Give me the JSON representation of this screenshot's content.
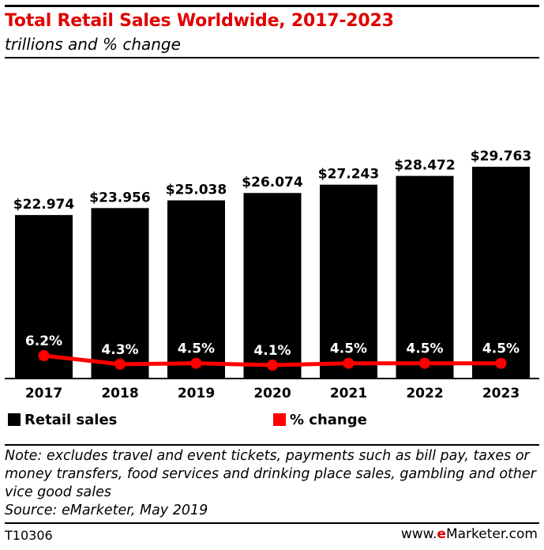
{
  "header": {
    "title": "Total Retail Sales Worldwide, 2017-2023",
    "subtitle": "trillions and % change"
  },
  "colors": {
    "accent": "#e00000",
    "bars": "#000000",
    "line": "#ff0000"
  },
  "chart_data": {
    "type": "bar",
    "categories": [
      "2017",
      "2018",
      "2019",
      "2020",
      "2021",
      "2022",
      "2023"
    ],
    "series": [
      {
        "name": "Retail sales",
        "type": "bar",
        "values": [
          22.974,
          23.956,
          25.038,
          26.074,
          27.243,
          28.472,
          29.763
        ],
        "labels": [
          "$22.974",
          "$23.956",
          "$25.038",
          "$26.074",
          "$27.243",
          "$28.472",
          "$29.763"
        ]
      },
      {
        "name": "% change",
        "type": "line",
        "values": [
          6.2,
          4.3,
          4.5,
          4.1,
          4.5,
          4.5,
          4.5
        ],
        "labels": [
          "6.2%",
          "4.3%",
          "4.5%",
          "4.1%",
          "4.5%",
          "4.5%",
          "4.5%"
        ]
      }
    ],
    "grid": false,
    "legend": "bottom"
  },
  "legend": {
    "bars_label": "Retail sales",
    "line_label": "% change"
  },
  "note": {
    "lines": [
      "Note: excludes travel and event tickets, payments such as bill pay, taxes or",
      "money transfers, food services and drinking place sales, gambling and other",
      "vice good sales"
    ],
    "source": "Source: eMarketer, May 2019"
  },
  "footer": {
    "id": "T10306",
    "brand_prefix": "www.",
    "brand_highlight": "e",
    "brand_suffix": "Marketer.com"
  }
}
